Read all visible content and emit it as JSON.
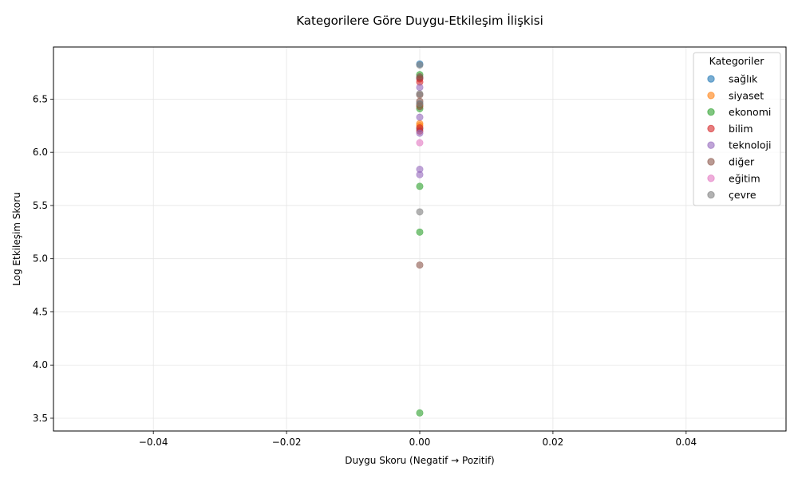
{
  "chart_data": {
    "type": "scatter",
    "title": "Kategorilere Göre Duygu-Etkileşim İlişkisi",
    "xlabel": "Duygu Skoru (Negatif → Pozitif)",
    "ylabel": "Log Etkileşim Skoru",
    "xlim": [
      -0.055,
      0.055
    ],
    "ylim": [
      3.38,
      6.99
    ],
    "xticks": [
      -0.04,
      -0.02,
      0.0,
      0.02,
      0.04
    ],
    "xtick_labels": [
      "−0.04",
      "−0.02",
      "0.00",
      "0.02",
      "0.04"
    ],
    "yticks": [
      3.5,
      4.0,
      4.5,
      5.0,
      5.5,
      6.0,
      6.5
    ],
    "ytick_labels": [
      "3.5",
      "4.0",
      "4.5",
      "5.0",
      "5.5",
      "6.0",
      "6.5"
    ],
    "grid": true,
    "legend": {
      "title": "Kategoriler",
      "placement": "upper-right"
    },
    "series": [
      {
        "name": "sağlık",
        "color": "#1f77b4",
        "points": [
          [
            0,
            6.83
          ],
          [
            0,
            6.7
          ],
          [
            0,
            6.45
          ],
          [
            0,
            6.22
          ]
        ]
      },
      {
        "name": "siyaset",
        "color": "#ff7f0e",
        "points": [
          [
            0,
            6.44
          ],
          [
            0,
            6.27
          ],
          [
            0,
            6.25
          ]
        ]
      },
      {
        "name": "ekonomi",
        "color": "#2ca02c",
        "points": [
          [
            0,
            6.73
          ],
          [
            0,
            6.41
          ],
          [
            0,
            5.68
          ],
          [
            0,
            5.25
          ],
          [
            0,
            3.55
          ]
        ]
      },
      {
        "name": "bilim",
        "color": "#d62728",
        "points": [
          [
            0,
            6.69
          ],
          [
            0,
            6.66
          ],
          [
            0,
            6.23
          ],
          [
            0,
            6.2
          ]
        ]
      },
      {
        "name": "teknoloji",
        "color": "#9467bd",
        "points": [
          [
            0,
            6.61
          ],
          [
            0,
            6.33
          ],
          [
            0,
            6.18
          ],
          [
            0,
            5.84
          ],
          [
            0,
            5.79
          ]
        ]
      },
      {
        "name": "diğer",
        "color": "#8c564b",
        "points": [
          [
            0,
            6.71
          ],
          [
            0,
            6.54
          ],
          [
            0,
            6.48
          ],
          [
            0,
            6.43
          ],
          [
            0,
            4.94
          ]
        ]
      },
      {
        "name": "eğitim",
        "color": "#e377c2",
        "points": [
          [
            0,
            6.09
          ]
        ]
      },
      {
        "name": "çevre",
        "color": "#7f7f7f",
        "points": [
          [
            0,
            6.82
          ],
          [
            0,
            6.55
          ],
          [
            0,
            6.46
          ],
          [
            0,
            5.44
          ]
        ]
      }
    ]
  }
}
